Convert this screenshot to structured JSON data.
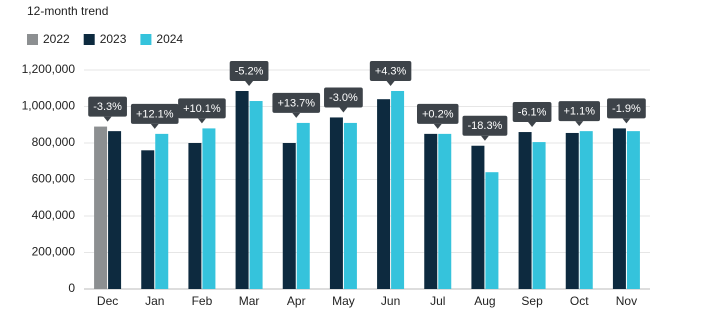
{
  "chart_data": {
    "type": "bar",
    "title": "12-month trend",
    "categories": [
      "Dec",
      "Jan",
      "Feb",
      "Mar",
      "Apr",
      "May",
      "Jun",
      "Jul",
      "Aug",
      "Sep",
      "Oct",
      "Nov"
    ],
    "series": [
      {
        "name": "2022",
        "color": "#8c8f91",
        "values": [
          890000,
          null,
          null,
          null,
          null,
          null,
          null,
          null,
          null,
          null,
          null,
          null
        ]
      },
      {
        "name": "2023",
        "color": "#0d2a3f",
        "values": [
          865000,
          760000,
          800000,
          1085000,
          800000,
          940000,
          1040000,
          850000,
          785000,
          860000,
          855000,
          880000
        ]
      },
      {
        "name": "2024",
        "color": "#35c3dc",
        "values": [
          null,
          850000,
          880000,
          1030000,
          910000,
          910000,
          1085000,
          850000,
          640000,
          805000,
          865000,
          865000
        ]
      }
    ],
    "annotations": [
      "-3.3%",
      "+12.1%",
      "+10.1%",
      "-5.2%",
      "+13.7%",
      "-3.0%",
      "+4.3%",
      "+0.2%",
      "-18.3%",
      "-6.1%",
      "+1.1%",
      "-1.9%"
    ],
    "ylim": [
      0,
      1200000
    ],
    "yticks": [
      0,
      {
        "value": 200000,
        "label": "200,000"
      },
      {
        "value": 400000,
        "label": "400,000"
      },
      {
        "value": 600000,
        "label": "600,000"
      },
      {
        "value": 800000,
        "label": "800,000"
      },
      {
        "value": 1000000,
        "label": "1,000,000"
      },
      {
        "value": 1200000,
        "label": "1,200,000"
      }
    ],
    "grid": true
  }
}
